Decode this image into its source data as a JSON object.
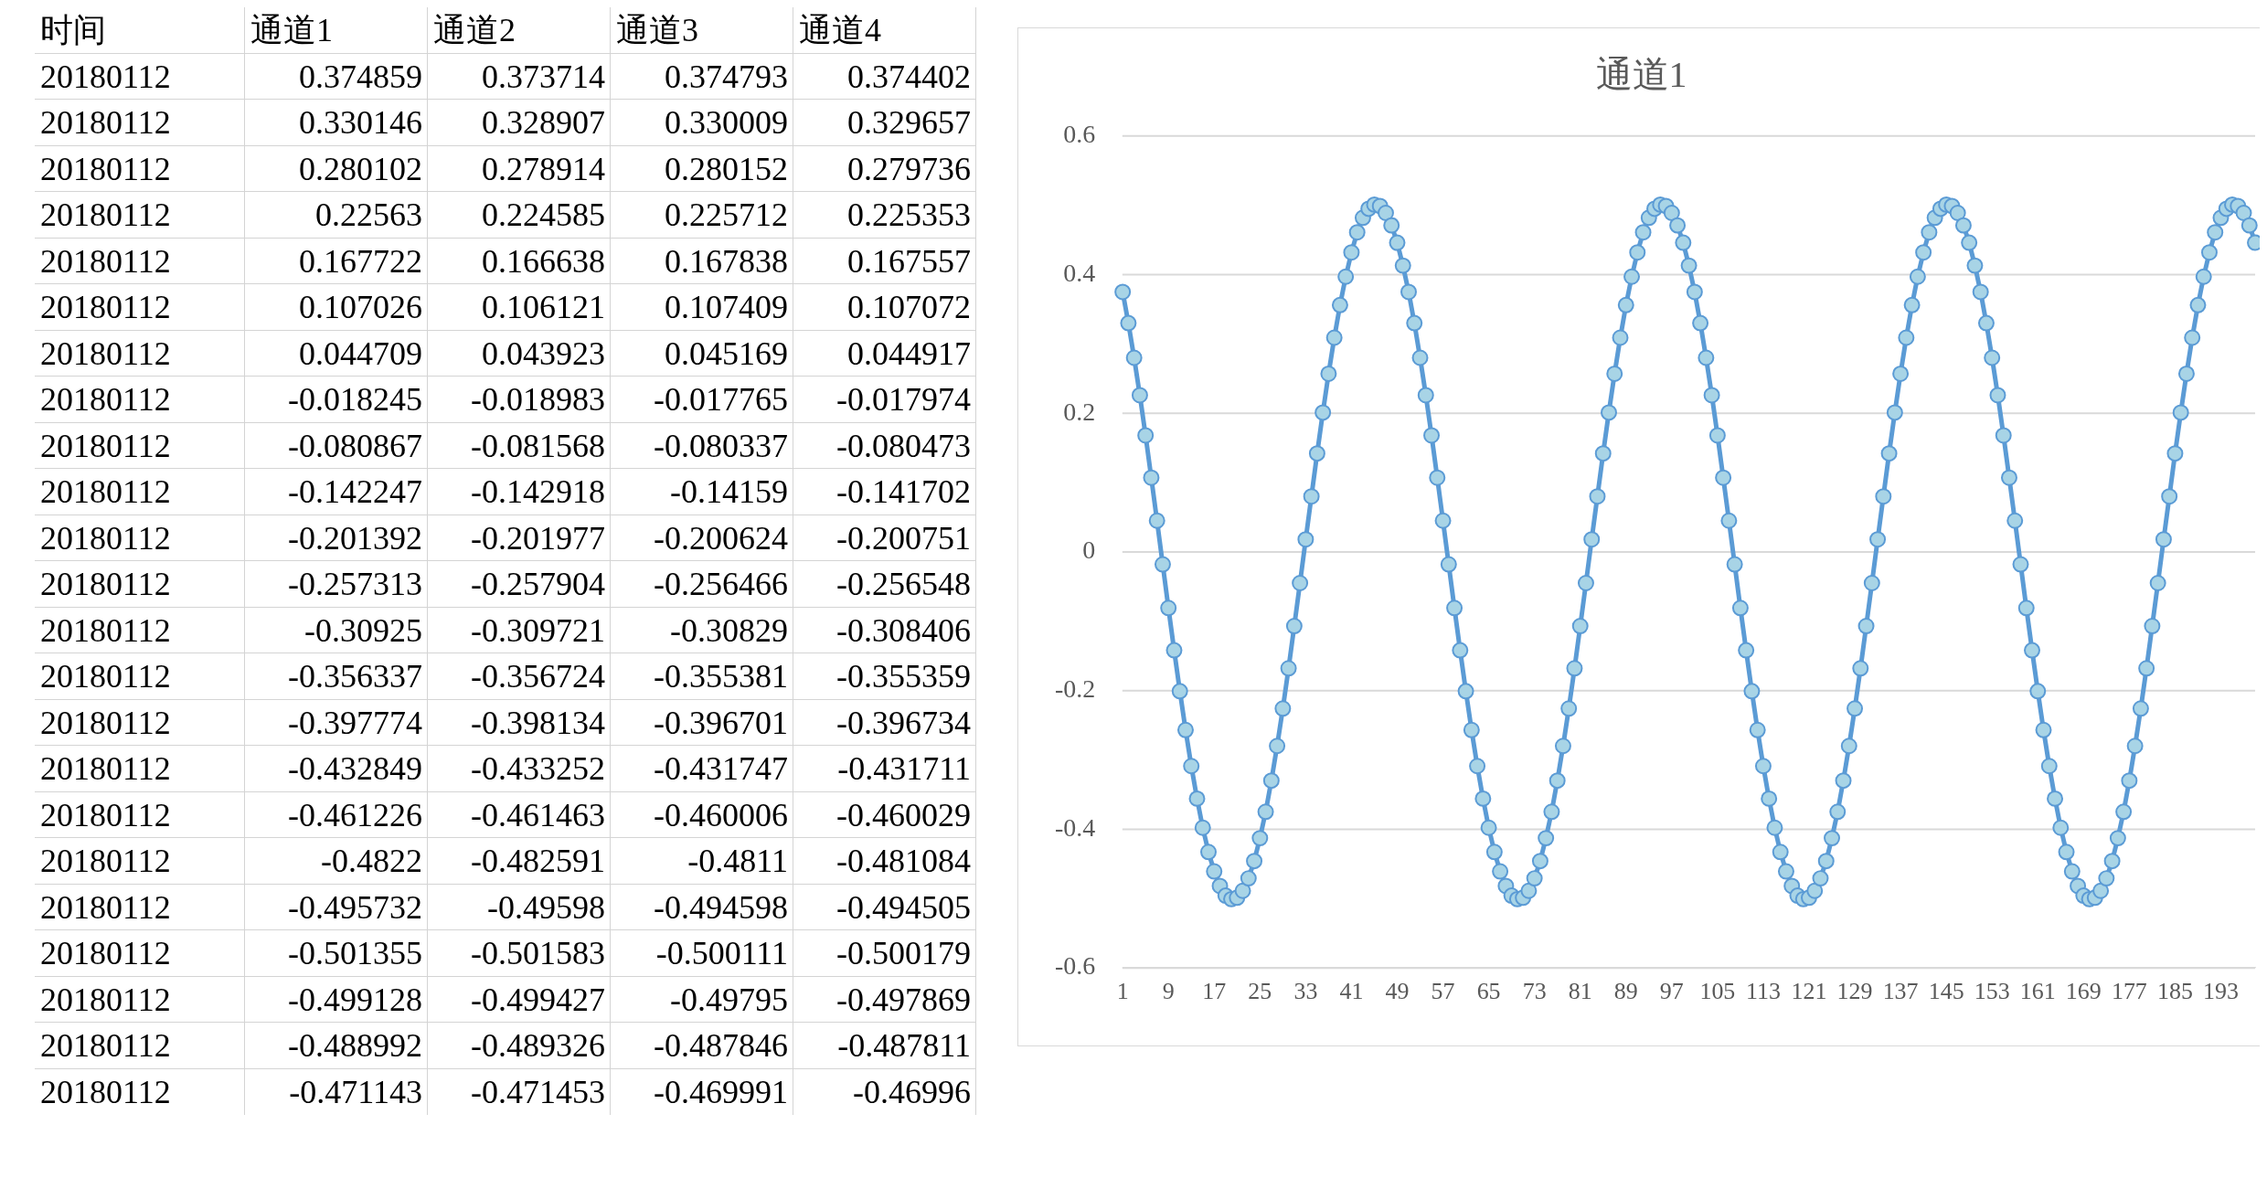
{
  "chart_data": [
    {
      "type": "heatmap",
      "ylabel": "时间",
      "categories": [
        "通道1",
        "通道2",
        "通道3",
        "通道4"
      ],
      "y_categories": [
        "20180112",
        "20180112",
        "20180112",
        "20180112",
        "20180112",
        "20180112",
        "20180112",
        "20180112",
        "20180112",
        "20180112",
        "20180112",
        "20180112",
        "20180112",
        "20180112",
        "20180112",
        "20180112",
        "20180112",
        "20180112",
        "20180112",
        "20180112",
        "20180112",
        "20180112",
        "20180112"
      ],
      "cell_labels": [
        [
          "0.374859",
          "0.373714",
          "0.374793",
          "0.374402"
        ],
        [
          "0.330146",
          "0.328907",
          "0.330009",
          "0.329657"
        ],
        [
          "0.280102",
          "0.278914",
          "0.280152",
          "0.279736"
        ],
        [
          "0.22563",
          "0.224585",
          "0.225712",
          "0.225353"
        ],
        [
          "0.167722",
          "0.166638",
          "0.167838",
          "0.167557"
        ],
        [
          "0.107026",
          "0.106121",
          "0.107409",
          "0.107072"
        ],
        [
          "0.044709",
          "0.043923",
          "0.045169",
          "0.044917"
        ],
        [
          "-0.018245",
          "-0.018983",
          "-0.017765",
          "-0.017974"
        ],
        [
          "-0.080867",
          "-0.081568",
          "-0.080337",
          "-0.080473"
        ],
        [
          "-0.142247",
          "-0.142918",
          "-0.14159",
          "-0.141702"
        ],
        [
          "-0.201392",
          "-0.201977",
          "-0.200624",
          "-0.200751"
        ],
        [
          "-0.257313",
          "-0.257904",
          "-0.256466",
          "-0.256548"
        ],
        [
          "-0.30925",
          "-0.309721",
          "-0.30829",
          "-0.308406"
        ],
        [
          "-0.356337",
          "-0.356724",
          "-0.355381",
          "-0.355359"
        ],
        [
          "-0.397774",
          "-0.398134",
          "-0.396701",
          "-0.396734"
        ],
        [
          "-0.432849",
          "-0.433252",
          "-0.431747",
          "-0.431711"
        ],
        [
          "-0.461226",
          "-0.461463",
          "-0.460006",
          "-0.460029"
        ],
        [
          "-0.4822",
          "-0.482591",
          "-0.4811",
          "-0.481084"
        ],
        [
          "-0.495732",
          "-0.49598",
          "-0.494598",
          "-0.494505"
        ],
        [
          "-0.501355",
          "-0.501583",
          "-0.500111",
          "-0.500179"
        ],
        [
          "-0.499128",
          "-0.499427",
          "-0.49795",
          "-0.497869"
        ],
        [
          "-0.488992",
          "-0.489326",
          "-0.487846",
          "-0.487811"
        ],
        [
          "-0.471143",
          "-0.471453",
          "-0.469991",
          "-0.46996"
        ]
      ],
      "cells": [
        [
          0.374859,
          0.373714,
          0.374793,
          0.374402
        ],
        [
          0.330146,
          0.328907,
          0.330009,
          0.329657
        ],
        [
          0.280102,
          0.278914,
          0.280152,
          0.279736
        ],
        [
          0.22563,
          0.224585,
          0.225712,
          0.225353
        ],
        [
          0.167722,
          0.166638,
          0.167838,
          0.167557
        ],
        [
          0.107026,
          0.106121,
          0.107409,
          0.107072
        ],
        [
          0.044709,
          0.043923,
          0.045169,
          0.044917
        ],
        [
          -0.018245,
          -0.018983,
          -0.017765,
          -0.017974
        ],
        [
          -0.080867,
          -0.081568,
          -0.080337,
          -0.080473
        ],
        [
          -0.142247,
          -0.142918,
          -0.14159,
          -0.141702
        ],
        [
          -0.201392,
          -0.201977,
          -0.200624,
          -0.200751
        ],
        [
          -0.257313,
          -0.257904,
          -0.256466,
          -0.256548
        ],
        [
          -0.30925,
          -0.309721,
          -0.30829,
          -0.308406
        ],
        [
          -0.356337,
          -0.356724,
          -0.355381,
          -0.355359
        ],
        [
          -0.397774,
          -0.398134,
          -0.396701,
          -0.396734
        ],
        [
          -0.432849,
          -0.433252,
          -0.431747,
          -0.431711
        ],
        [
          -0.461226,
          -0.461463,
          -0.460006,
          -0.460029
        ],
        [
          -0.4822,
          -0.482591,
          -0.4811,
          -0.481084
        ],
        [
          -0.495732,
          -0.49598,
          -0.494598,
          -0.494505
        ],
        [
          -0.501355,
          -0.501583,
          -0.500111,
          -0.500179
        ],
        [
          -0.499128,
          -0.499427,
          -0.49795,
          -0.497869
        ],
        [
          -0.488992,
          -0.489326,
          -0.487846,
          -0.487811
        ],
        [
          -0.471143,
          -0.471453,
          -0.469991,
          -0.46996
        ]
      ]
    },
    {
      "type": "line",
      "title": "通道1",
      "marker": "circle",
      "grid": "y",
      "legend": false,
      "ylim": [
        -0.6,
        0.6
      ],
      "yticks": [
        -0.6,
        -0.4,
        -0.2,
        0,
        0.2,
        0.4,
        0.6
      ],
      "categories": [
        "1",
        null,
        null,
        null,
        null,
        null,
        null,
        null,
        "9",
        null,
        null,
        null,
        null,
        null,
        null,
        null,
        "17",
        null,
        null,
        null,
        null,
        null,
        null,
        null,
        "25",
        null,
        null,
        null,
        null,
        null,
        null,
        null,
        "33",
        null,
        null,
        null,
        null,
        null,
        null,
        null,
        "41",
        null,
        null,
        null,
        null,
        null,
        null,
        null,
        "49",
        null,
        null,
        null,
        null,
        null,
        null,
        null,
        "57",
        null,
        null,
        null,
        null,
        null,
        null,
        null,
        "65",
        null,
        null,
        null,
        null,
        null,
        null,
        null,
        "73",
        null,
        null,
        null,
        null,
        null,
        null,
        null,
        "81",
        null,
        null,
        null,
        null,
        null,
        null,
        null,
        "89",
        null,
        null,
        null,
        null,
        null,
        null,
        null,
        "97",
        null,
        null,
        null,
        null,
        null,
        null,
        null,
        "105",
        null,
        null,
        null,
        null,
        null,
        null,
        null,
        "113",
        null,
        null,
        null,
        null,
        null,
        null,
        null,
        "121",
        null,
        null,
        null,
        null,
        null,
        null,
        null,
        "129",
        null,
        null,
        null,
        null,
        null,
        null,
        null,
        "137",
        null,
        null,
        null,
        null,
        null,
        null,
        null,
        "145",
        null,
        null,
        null,
        null,
        null,
        null,
        null,
        "153",
        null,
        null,
        null,
        null,
        null,
        null,
        null,
        "161",
        null,
        null,
        null,
        null,
        null,
        null,
        null,
        "169",
        null,
        null,
        null,
        null,
        null,
        null,
        null,
        "177",
        null,
        null,
        null,
        null,
        null,
        null,
        null,
        "185",
        null,
        null,
        null,
        null,
        null,
        null,
        null,
        "193",
        null,
        null,
        null,
        null,
        null,
        null
      ],
      "series": [
        {
          "color": "#5b9bd5",
          "values": [
            0.375,
            0.33,
            0.28,
            0.226,
            0.168,
            0.107,
            0.045,
            -0.018,
            -0.081,
            -0.142,
            -0.201,
            -0.257,
            -0.309,
            -0.356,
            -0.398,
            -0.433,
            -0.461,
            -0.482,
            -0.496,
            -0.501,
            -0.499,
            -0.489,
            -0.471,
            -0.446,
            -0.413,
            -0.375,
            -0.33,
            -0.28,
            -0.226,
            -0.168,
            -0.107,
            -0.045,
            0.018,
            0.08,
            0.142,
            0.201,
            0.257,
            0.309,
            0.356,
            0.397,
            0.432,
            0.461,
            0.482,
            0.495,
            0.501,
            0.499,
            0.489,
            0.471,
            0.446,
            0.413,
            0.375,
            0.33,
            0.28,
            0.226,
            0.168,
            0.107,
            0.045,
            -0.018,
            -0.081,
            -0.142,
            -0.201,
            -0.257,
            -0.309,
            -0.356,
            -0.398,
            -0.433,
            -0.461,
            -0.482,
            -0.496,
            -0.501,
            -0.499,
            -0.489,
            -0.471,
            -0.446,
            -0.413,
            -0.375,
            -0.33,
            -0.28,
            -0.226,
            -0.168,
            -0.107,
            -0.045,
            0.018,
            0.08,
            0.142,
            0.201,
            0.257,
            0.309,
            0.356,
            0.397,
            0.432,
            0.461,
            0.482,
            0.495,
            0.501,
            0.499,
            0.489,
            0.471,
            0.446,
            0.413,
            0.375,
            0.33,
            0.28,
            0.226,
            0.168,
            0.107,
            0.045,
            -0.018,
            -0.081,
            -0.142,
            -0.201,
            -0.257,
            -0.309,
            -0.356,
            -0.398,
            -0.433,
            -0.461,
            -0.482,
            -0.496,
            -0.501,
            -0.499,
            -0.489,
            -0.471,
            -0.446,
            -0.413,
            -0.375,
            -0.33,
            -0.28,
            -0.226,
            -0.168,
            -0.107,
            -0.045,
            0.018,
            0.08,
            0.142,
            0.201,
            0.257,
            0.309,
            0.356,
            0.397,
            0.432,
            0.461,
            0.482,
            0.495,
            0.501,
            0.499,
            0.489,
            0.471,
            0.446,
            0.413,
            0.375,
            0.33,
            0.28,
            0.226,
            0.168,
            0.107,
            0.045,
            -0.018,
            -0.081,
            -0.142,
            -0.201,
            -0.257,
            -0.309,
            -0.356,
            -0.398,
            -0.433,
            -0.461,
            -0.482,
            -0.496,
            -0.501,
            -0.499,
            -0.489,
            -0.471,
            -0.446,
            -0.413,
            -0.375,
            -0.33,
            -0.28,
            -0.226,
            -0.168,
            -0.107,
            -0.045,
            0.018,
            0.08,
            0.142,
            0.201,
            0.257,
            0.309,
            0.356,
            0.397,
            0.432,
            0.461,
            0.482,
            0.495,
            0.501,
            0.499,
            0.489,
            0.471,
            0.446
          ]
        }
      ]
    }
  ]
}
